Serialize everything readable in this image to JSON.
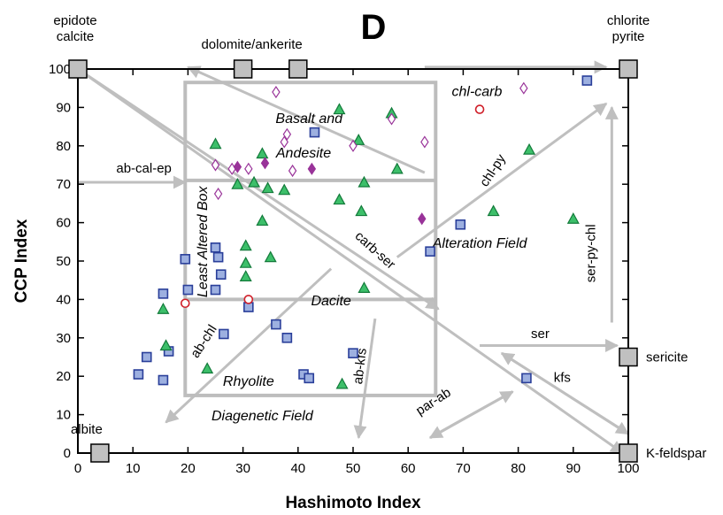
{
  "chart_data": {
    "type": "scatter",
    "title": "D",
    "xlabel": "Hashimoto Index",
    "ylabel": "CCP Index",
    "xlim": [
      0,
      100
    ],
    "ylim": [
      0,
      100
    ],
    "xticks": [
      0,
      10,
      20,
      30,
      40,
      50,
      60,
      70,
      80,
      90,
      100
    ],
    "yticks": [
      0,
      10,
      20,
      30,
      40,
      50,
      60,
      70,
      80,
      90,
      100
    ],
    "grid": false,
    "colors": {
      "axis": "#000000",
      "guide": "#bfbfbf",
      "box_outline": "#bdbdbd",
      "end_member_fill": "#c0c0c0",
      "square_fill": "#9db0e0",
      "square_edge": "#2a3f9a",
      "triangle_fill": "#3dbf6a",
      "triangle_edge": "#127a3a",
      "diamond_color": "#993399",
      "circle_edge": "#d0202a"
    },
    "end_members": [
      {
        "label": [
          "epidote",
          "calcite"
        ],
        "x": 0,
        "y": 100
      },
      {
        "label": [
          "dolomite/ankerite"
        ],
        "x": 30,
        "y": 100
      },
      {
        "label": [],
        "x": 40,
        "y": 100
      },
      {
        "label": [
          "chlorite",
          "pyrite"
        ],
        "x": 100,
        "y": 100
      },
      {
        "label": [
          "sericite"
        ],
        "x": 100,
        "y": 25
      },
      {
        "label": [
          "albite"
        ],
        "x": 4,
        "y": 0
      },
      {
        "label": [
          "K-feldspar"
        ],
        "x": 100,
        "y": 0
      }
    ],
    "field_labels": [
      {
        "text": "Basalt and",
        "x": 42,
        "y": 86
      },
      {
        "text": "Andesite",
        "x": 41,
        "y": 77
      },
      {
        "text": "Dacite",
        "x": 46,
        "y": 38.5
      },
      {
        "text": "Rhyolite",
        "x": 31,
        "y": 17.5
      },
      {
        "text": "Diagenetic Field",
        "x": 33.5,
        "y": 8.5
      },
      {
        "text": "Alteration Field",
        "x": 73,
        "y": 53.5
      },
      {
        "text": "chl-carb",
        "x": 72.5,
        "y": 93
      },
      {
        "text": "Least Altered Box",
        "x": 23.5,
        "y": 55,
        "rotate": -90
      }
    ],
    "arrow_labels": [
      {
        "text": "ab-cal-ep",
        "x": 12,
        "y": 73
      },
      {
        "text": "chl-py",
        "x": 76,
        "y": 73,
        "rotate": -57
      },
      {
        "text": "carb-ser",
        "x": 53.5,
        "y": 52,
        "rotate": 42
      },
      {
        "text": "ser-py-chl",
        "x": 94,
        "y": 52,
        "rotate": -90
      },
      {
        "text": "ser",
        "x": 84,
        "y": 30
      },
      {
        "text": "kfs",
        "x": 88,
        "y": 18.5
      },
      {
        "text": "ab-chl",
        "x": 23.5,
        "y": 28.5,
        "rotate": -57
      },
      {
        "text": "ab-kfs",
        "x": 52,
        "y": 22.5,
        "rotate": -83
      },
      {
        "text": "par-ab",
        "x": 65,
        "y": 12.5,
        "rotate": -33
      }
    ],
    "series": [
      {
        "marker": "square",
        "points": [
          [
            11,
            20.5
          ],
          [
            12.5,
            25
          ],
          [
            15.5,
            41.5
          ],
          [
            15.5,
            19
          ],
          [
            16.5,
            26.5
          ],
          [
            19.5,
            50.5
          ],
          [
            20,
            42.5
          ],
          [
            25,
            42.5
          ],
          [
            25,
            53.5
          ],
          [
            25.5,
            51
          ],
          [
            26,
            46.5
          ],
          [
            26.5,
            31
          ],
          [
            31,
            38
          ],
          [
            36,
            33.5
          ],
          [
            38,
            30
          ],
          [
            41,
            20.5
          ],
          [
            42,
            19.5
          ],
          [
            43,
            83.5
          ],
          [
            50,
            26
          ],
          [
            64,
            52.5
          ],
          [
            69.5,
            59.5
          ],
          [
            81.5,
            19.5
          ],
          [
            92.5,
            97
          ]
        ]
      },
      {
        "marker": "triangle",
        "points": [
          [
            15.5,
            37.5
          ],
          [
            16,
            28
          ],
          [
            23.5,
            22
          ],
          [
            25,
            80.5
          ],
          [
            29,
            70
          ],
          [
            30.5,
            54
          ],
          [
            30.5,
            49.5
          ],
          [
            30.5,
            46
          ],
          [
            32,
            70.5
          ],
          [
            33.5,
            78
          ],
          [
            33.5,
            60.5
          ],
          [
            34.5,
            69
          ],
          [
            35,
            51
          ],
          [
            37.5,
            68.5
          ],
          [
            47.5,
            89.5
          ],
          [
            47.5,
            66
          ],
          [
            48,
            18
          ],
          [
            51,
            81.5
          ],
          [
            51.5,
            63
          ],
          [
            52,
            70.5
          ],
          [
            52,
            43
          ],
          [
            57,
            88.5
          ],
          [
            58,
            74
          ],
          [
            75.5,
            63
          ],
          [
            82,
            79
          ],
          [
            90,
            61
          ]
        ]
      },
      {
        "marker": "diamond-open",
        "points": [
          [
            25,
            75
          ],
          [
            25.5,
            67.5
          ],
          [
            28,
            74
          ],
          [
            31,
            74
          ],
          [
            36,
            94
          ],
          [
            37.5,
            81
          ],
          [
            38,
            83
          ],
          [
            39,
            73.5
          ],
          [
            50,
            80
          ],
          [
            57,
            87
          ],
          [
            63,
            81
          ],
          [
            81,
            95
          ]
        ]
      },
      {
        "marker": "diamond-filled",
        "points": [
          [
            29,
            74.5
          ],
          [
            34,
            75.5
          ],
          [
            42.5,
            74
          ],
          [
            62.5,
            61
          ]
        ]
      },
      {
        "marker": "circle-open",
        "points": [
          [
            19.5,
            39
          ],
          [
            31,
            40
          ],
          [
            73,
            89.5
          ]
        ]
      }
    ]
  }
}
